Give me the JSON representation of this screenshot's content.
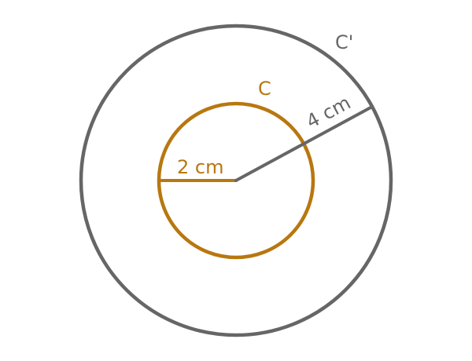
{
  "diagram": {
    "outer_circle": {
      "label": "C'",
      "color": "#666666"
    },
    "inner_circle": {
      "label": "C",
      "color": "#b8770f"
    },
    "inner_radius": {
      "label": "2 cm",
      "value": 2,
      "unit": "cm"
    },
    "outer_radius": {
      "label": "4 cm",
      "value": 4,
      "unit": "cm"
    }
  }
}
